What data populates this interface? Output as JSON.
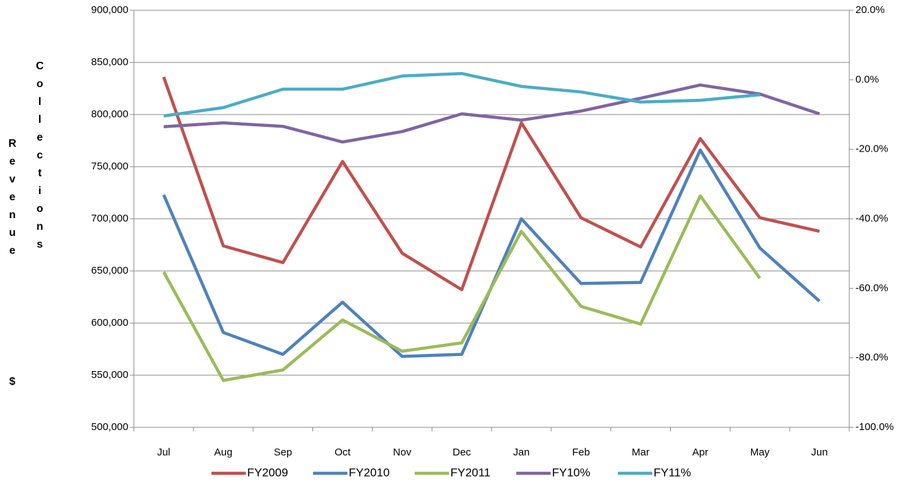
{
  "chart_data": {
    "type": "line",
    "ylabel": [
      "Revenue",
      "Collections",
      "$"
    ],
    "categories": [
      "Jul",
      "Aug",
      "Sep",
      "Oct",
      "Nov",
      "Dec",
      "Jan",
      "Feb",
      "Mar",
      "Apr",
      "May",
      "Jun"
    ],
    "series": [
      {
        "name": "FY2009",
        "color": "#c0504d",
        "values": [
          836000,
          674000,
          658000,
          755000,
          667000,
          632000,
          792000,
          701000,
          673000,
          777000,
          701000,
          688000
        ]
      },
      {
        "name": "FY2010",
        "color": "#4f81bd",
        "values": [
          723000,
          591000,
          570000,
          620000,
          568000,
          570000,
          700000,
          638000,
          639000,
          766000,
          672000,
          621000
        ]
      },
      {
        "name": "FY2011",
        "color": "#9bbb59",
        "values": [
          649000,
          545000,
          555000,
          603000,
          573000,
          581000,
          688000,
          616000,
          599000,
          722000,
          643000,
          null
        ]
      },
      {
        "name": "FY10%",
        "color": "#8064a2",
        "axis": "y2",
        "values": [
          -13.5,
          -12.4,
          -13.4,
          -17.9,
          -14.9,
          -9.8,
          -11.6,
          -9.0,
          -5.3,
          -1.5,
          -4.1,
          -9.8
        ]
      },
      {
        "name": "FY11%",
        "color": "#4bacc6",
        "axis": "y2",
        "values": [
          -10.4,
          -8.0,
          -2.7,
          -2.7,
          1.1,
          1.8,
          -1.9,
          -3.5,
          -6.4,
          -5.9,
          -4.3,
          null
        ]
      }
    ],
    "ylim": [
      500000,
      900000
    ],
    "yticks": [
      {
        "value": 500000,
        "label": "500,000"
      },
      {
        "value": 550000,
        "label": "550,000"
      },
      {
        "value": 600000,
        "label": "600,000"
      },
      {
        "value": 650000,
        "label": "650,000"
      },
      {
        "value": 700000,
        "label": "700,000"
      },
      {
        "value": 750000,
        "label": "750,000"
      },
      {
        "value": 800000,
        "label": "800,000"
      },
      {
        "value": 850000,
        "label": "850,000"
      },
      {
        "value": 900000,
        "label": "900,000"
      }
    ],
    "y2lim": [
      -100,
      20
    ],
    "y2ticks": [
      {
        "value": -100,
        "label": "-100.0%"
      },
      {
        "value": -80,
        "label": "-80.0%"
      },
      {
        "value": -60,
        "label": "-60.0%"
      },
      {
        "value": -40,
        "label": "-40.0%"
      },
      {
        "value": -20,
        "label": "-20.0%"
      },
      {
        "value": 0,
        "label": "0.0%"
      },
      {
        "value": 20,
        "label": "20.0%"
      }
    ],
    "grid": true,
    "legend": "bottom"
  }
}
